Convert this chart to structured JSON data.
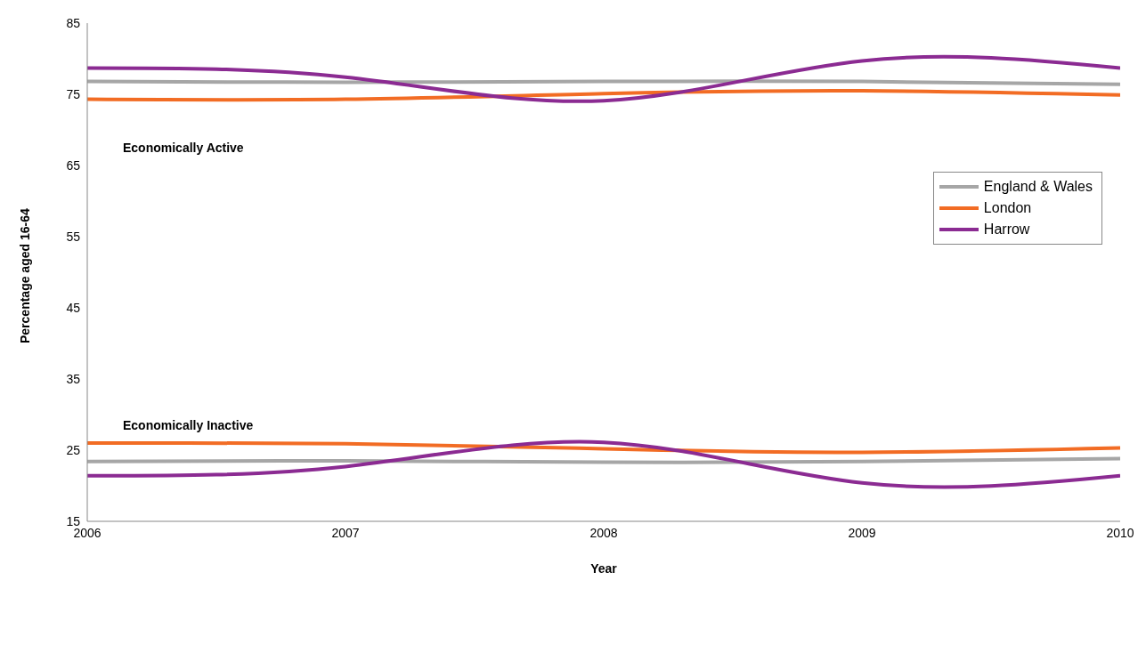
{
  "chart_data": {
    "type": "line",
    "xlabel": "Year",
    "ylabel": "Percentage aged 16-64",
    "x": [
      2006,
      2007,
      2008,
      2009,
      2010
    ],
    "xlim": [
      2006,
      2010
    ],
    "xticks": [
      2006,
      2007,
      2008,
      2009,
      2010
    ],
    "ylim": [
      15,
      85
    ],
    "yticks": [
      15,
      25,
      35,
      45,
      55,
      65,
      75,
      85
    ],
    "grid": false,
    "legend": "right",
    "marker": "none",
    "line_style": "solid",
    "series": [
      {
        "name": "England & Wales",
        "color": "#a6a6a6",
        "values": [
          76.8,
          76.7,
          76.8,
          76.8,
          76.4
        ]
      },
      {
        "name": "London",
        "color": "#f26c24",
        "values": [
          74.3,
          74.3,
          75.1,
          75.5,
          74.9
        ]
      },
      {
        "name": "Harrow",
        "color": "#8b2b92",
        "values": [
          78.7,
          77.4,
          74.1,
          79.7,
          78.7
        ]
      },
      {
        "color": "#a6a6a6",
        "values": [
          23.4,
          23.5,
          23.3,
          23.4,
          23.8
        ]
      },
      {
        "color": "#f26c24",
        "values": [
          26.0,
          25.9,
          25.2,
          24.7,
          25.3
        ]
      },
      {
        "color": "#8b2b92",
        "values": [
          21.4,
          22.7,
          26.1,
          20.4,
          21.4
        ]
      }
    ],
    "annotations": [
      "Economically Active",
      "Economically Inactive"
    ]
  }
}
